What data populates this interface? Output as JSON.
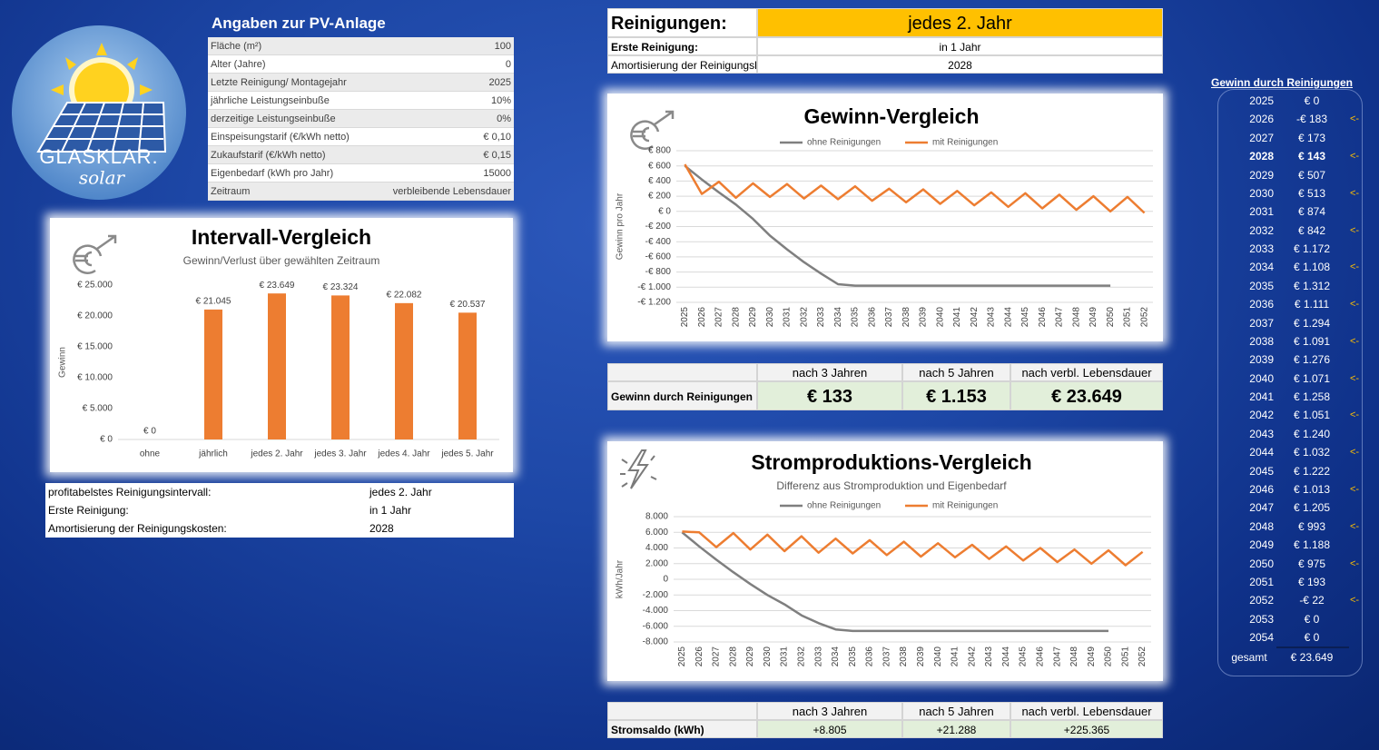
{
  "logo": {
    "name": "GLASKLAR.",
    "tagline": "solar"
  },
  "pv_table": {
    "title": "Angaben zur PV-Anlage",
    "rows": [
      [
        "Fläche (m²)",
        "100"
      ],
      [
        "Alter (Jahre)",
        "0"
      ],
      [
        "Letzte Reinigung/ Montagejahr",
        "2025"
      ],
      [
        "jährliche Leistungseinbuße",
        "10%"
      ],
      [
        "derzeitige Leistungseinbuße",
        "0%"
      ],
      [
        "Einspeisungstarif (€/kWh netto)",
        "€ 0,10"
      ],
      [
        "Zukaufstarif (€/kWh netto)",
        "€ 0,15"
      ],
      [
        "Eigenbedarf (kWh pro Jahr)",
        "15000"
      ],
      [
        "Zeitraum",
        "verbleibende Lebensdauer"
      ]
    ]
  },
  "cleaning": {
    "rows": [
      [
        "Reinigungen:",
        "jedes 2. Jahr"
      ],
      [
        "Erste Reinigung:",
        "in 1 Jahr"
      ],
      [
        "Amortisierung der Reinigungskosten:",
        "2028"
      ]
    ]
  },
  "summary_table": {
    "rows": [
      [
        "profitabelstes Reinigungsintervall:",
        "jedes 2. Jahr"
      ],
      [
        "Erste Reinigung:",
        "in 1 Jahr"
      ],
      [
        "Amortisierung der Reinigungskosten:",
        "2028"
      ]
    ]
  },
  "profit_table": {
    "headers": [
      "nach 3 Jahren",
      "nach 5 Jahren",
      "nach verbl. Lebensdauer"
    ],
    "label": "Gewinn durch Reinigungen",
    "values": [
      "€ 133",
      "€ 1.153",
      "€ 23.649"
    ]
  },
  "power_table": {
    "headers": [
      "nach 3 Jahren",
      "nach 5 Jahren",
      "nach verbl. Lebensdauer"
    ],
    "label": "Stromsaldo (kWh)",
    "values": [
      "+8.805",
      "+21.288",
      "+225.365"
    ]
  },
  "gain_list": {
    "title": "Gewinn durch Reinigungen",
    "rows": [
      {
        "year": "2025",
        "value": "€ 0"
      },
      {
        "year": "2026",
        "value": "-€ 183",
        "marker": "<-"
      },
      {
        "year": "2027",
        "value": "€ 173"
      },
      {
        "year": "2028",
        "value": "€ 143",
        "marker": "<-",
        "bold": true
      },
      {
        "year": "2029",
        "value": "€ 507"
      },
      {
        "year": "2030",
        "value": "€ 513",
        "marker": "<-"
      },
      {
        "year": "2031",
        "value": "€ 874"
      },
      {
        "year": "2032",
        "value": "€ 842",
        "marker": "<-"
      },
      {
        "year": "2033",
        "value": "€ 1.172"
      },
      {
        "year": "2034",
        "value": "€ 1.108",
        "marker": "<-"
      },
      {
        "year": "2035",
        "value": "€ 1.312"
      },
      {
        "year": "2036",
        "value": "€ 1.111",
        "marker": "<-"
      },
      {
        "year": "2037",
        "value": "€ 1.294"
      },
      {
        "year": "2038",
        "value": "€ 1.091",
        "marker": "<-"
      },
      {
        "year": "2039",
        "value": "€ 1.276"
      },
      {
        "year": "2040",
        "value": "€ 1.071",
        "marker": "<-"
      },
      {
        "year": "2041",
        "value": "€ 1.258"
      },
      {
        "year": "2042",
        "value": "€ 1.051",
        "marker": "<-"
      },
      {
        "year": "2043",
        "value": "€ 1.240"
      },
      {
        "year": "2044",
        "value": "€ 1.032",
        "marker": "<-"
      },
      {
        "year": "2045",
        "value": "€ 1.222"
      },
      {
        "year": "2046",
        "value": "€ 1.013",
        "marker": "<-"
      },
      {
        "year": "2047",
        "value": "€ 1.205"
      },
      {
        "year": "2048",
        "value": "€ 993",
        "marker": "<-"
      },
      {
        "year": "2049",
        "value": "€ 1.188"
      },
      {
        "year": "2050",
        "value": "€ 975",
        "marker": "<-"
      },
      {
        "year": "2051",
        "value": "€ 193"
      },
      {
        "year": "2052",
        "value": "-€ 22",
        "marker": "<-"
      },
      {
        "year": "2053",
        "value": "€ 0"
      },
      {
        "year": "2054",
        "value": "€ 0"
      }
    ],
    "total_label": "gesamt",
    "total": "€ 23.649"
  },
  "chart_data": [
    {
      "type": "bar",
      "title": "Intervall-Vergleich",
      "subtitle": "Gewinn/Verlust über gewählten Zeitraum",
      "y_label": "Gewinn",
      "categories": [
        "ohne",
        "jährlich",
        "jedes 2. Jahr",
        "jedes 3. Jahr",
        "jedes 4. Jahr",
        "jedes 5. Jahr"
      ],
      "values": [
        0,
        21045,
        23649,
        23324,
        22082,
        20537
      ],
      "value_labels": [
        "€ 0",
        "€ 21.045",
        "€ 23.649",
        "€ 23.324",
        "€ 22.082",
        "€ 20.537"
      ],
      "color": "#ed7d31",
      "ylim": [
        0,
        25000
      ],
      "yticks": [
        {
          "value": 0,
          "label": "€ 0"
        },
        {
          "value": 5000,
          "label": "€ 5.000"
        },
        {
          "value": 10000,
          "label": "€ 10.000"
        },
        {
          "value": 15000,
          "label": "€ 15.000"
        },
        {
          "value": 20000,
          "label": "€ 20.000"
        },
        {
          "value": 25000,
          "label": "€ 25.000"
        }
      ],
      "grid": false
    },
    {
      "type": "line",
      "title": "Gewinn-Vergleich",
      "y_label": "Gewinn pro Jahr",
      "categories": [
        "2025",
        "2026",
        "2027",
        "2028",
        "2029",
        "2030",
        "2031",
        "2032",
        "2033",
        "2034",
        "2035",
        "2036",
        "2037",
        "2038",
        "2039",
        "2040",
        "2041",
        "2042",
        "2043",
        "2044",
        "2045",
        "2046",
        "2047",
        "2048",
        "2049",
        "2050",
        "2051",
        "2052"
      ],
      "series": [
        {
          "name": "ohne Reinigungen",
          "color": "#7f7f7f",
          "values": [
            600,
            420,
            250,
            90,
            -100,
            -320,
            -500,
            -670,
            -820,
            -960,
            -980,
            -980,
            -980,
            -980,
            -980,
            -980,
            -980,
            -980,
            -980,
            -980,
            -980,
            -980,
            -980,
            -980,
            -980,
            -980,
            null,
            null
          ]
        },
        {
          "name": "mit Reinigungen",
          "color": "#ed7d31",
          "values": [
            620,
            230,
            390,
            180,
            370,
            190,
            360,
            170,
            340,
            160,
            330,
            140,
            300,
            120,
            290,
            100,
            270,
            80,
            250,
            60,
            240,
            40,
            220,
            20,
            200,
            0,
            190,
            -20
          ]
        }
      ],
      "ylim": [
        -1200,
        800
      ],
      "yticks": [
        {
          "value": 800,
          "label": "€ 800"
        },
        {
          "value": 600,
          "label": "€ 600"
        },
        {
          "value": 400,
          "label": "€ 400"
        },
        {
          "value": 200,
          "label": "€ 200"
        },
        {
          "value": 0,
          "label": "€ 0"
        },
        {
          "value": -200,
          "label": "-€ 200"
        },
        {
          "value": -400,
          "label": "-€ 400"
        },
        {
          "value": -600,
          "label": "-€ 600"
        },
        {
          "value": -800,
          "label": "-€ 800"
        },
        {
          "value": -1000,
          "label": "-€ 1.000"
        },
        {
          "value": -1200,
          "label": "-€ 1.200"
        }
      ],
      "grid": true
    },
    {
      "type": "line",
      "title": "Stromproduktions-Vergleich",
      "subtitle": "Differenz aus Stromproduktion und Eigenbedarf",
      "y_label": "kWh/Jahr",
      "categories": [
        "2025",
        "2026",
        "2027",
        "2028",
        "2029",
        "2030",
        "2031",
        "2032",
        "2033",
        "2034",
        "2035",
        "2036",
        "2037",
        "2038",
        "2039",
        "2040",
        "2041",
        "2042",
        "2043",
        "2044",
        "2045",
        "2046",
        "2047",
        "2048",
        "2049",
        "2050",
        "2051",
        "2052"
      ],
      "series": [
        {
          "name": "ohne Reinigungen",
          "color": "#7f7f7f",
          "values": [
            6000,
            4200,
            2500,
            900,
            -600,
            -2000,
            -3200,
            -4600,
            -5600,
            -6400,
            -6600,
            -6600,
            -6600,
            -6600,
            -6600,
            -6600,
            -6600,
            -6600,
            -6600,
            -6600,
            -6600,
            -6600,
            -6600,
            -6600,
            -6600,
            -6600,
            null,
            null
          ]
        },
        {
          "name": "mit Reinigungen",
          "color": "#ed7d31",
          "values": [
            6100,
            6000,
            4100,
            5900,
            3800,
            5700,
            3600,
            5500,
            3400,
            5200,
            3300,
            5000,
            3100,
            4800,
            2900,
            4600,
            2800,
            4400,
            2600,
            4200,
            2400,
            4000,
            2200,
            3800,
            2000,
            3700,
            1800,
            3500
          ]
        }
      ],
      "ylim": [
        -8000,
        8000
      ],
      "yticks": [
        {
          "value": 8000,
          "label": "8.000"
        },
        {
          "value": 6000,
          "label": "6.000"
        },
        {
          "value": 4000,
          "label": "4.000"
        },
        {
          "value": 2000,
          "label": "2.000"
        },
        0,
        {
          "value": -2000,
          "label": "-2.000"
        },
        {
          "value": -4000,
          "label": "-4.000"
        },
        {
          "value": -6000,
          "label": "-6.000"
        },
        {
          "value": -8000,
          "label": "-8.000"
        }
      ],
      "grid": true
    }
  ]
}
